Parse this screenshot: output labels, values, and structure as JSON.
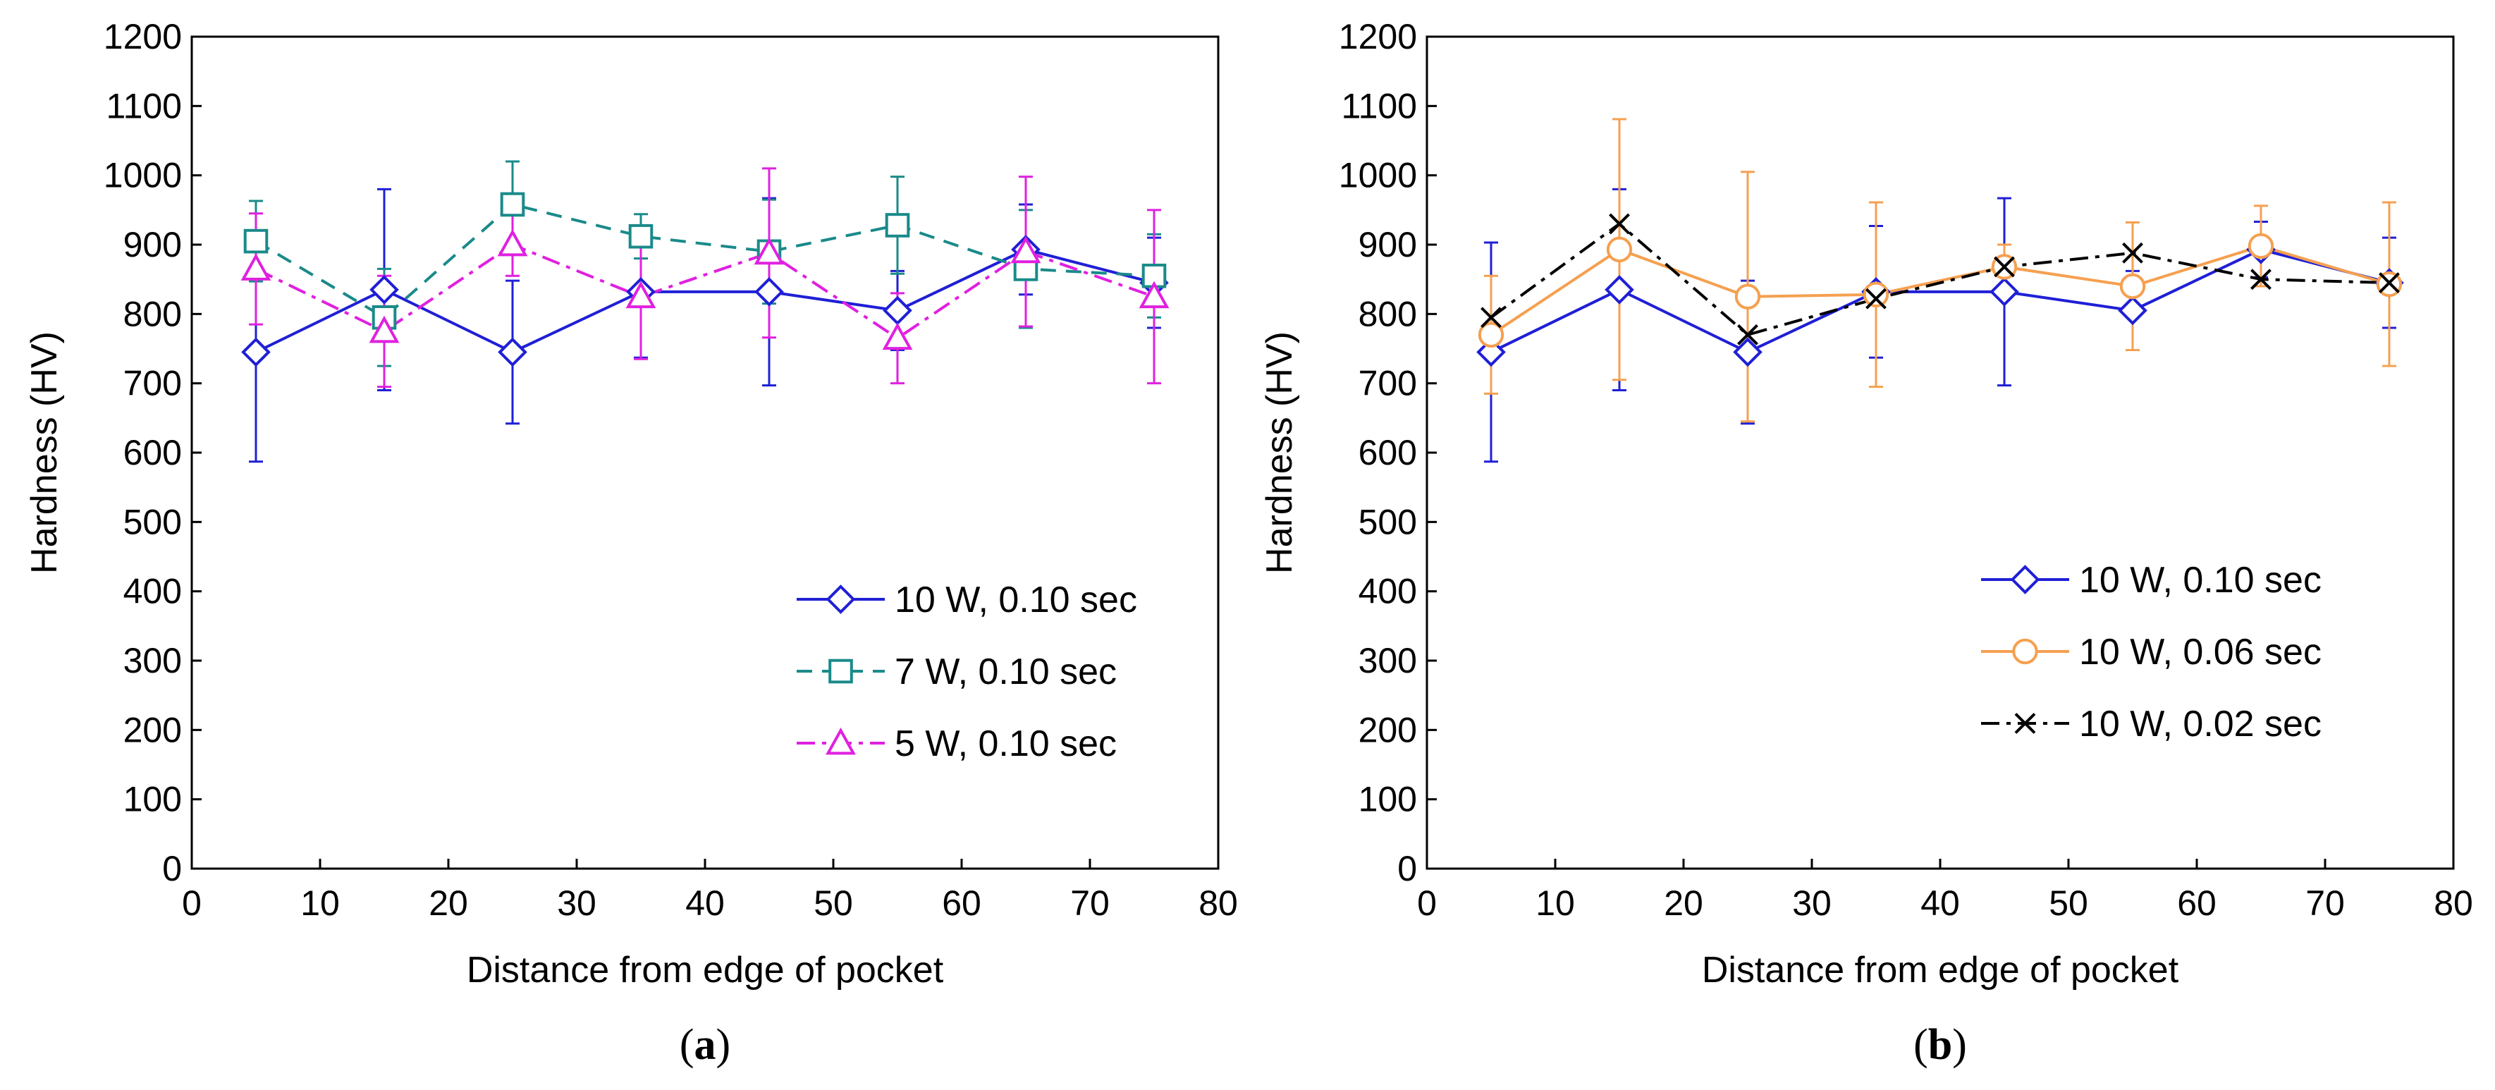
{
  "chart_data": [
    {
      "panel": "a",
      "type": "line",
      "caption_prefix": "(",
      "caption_letter": "a",
      "caption_suffix": ")",
      "xlabel": "Distance from edge of pocket",
      "ylabel": "Hardness (HV)",
      "xlim": [
        0,
        80
      ],
      "ylim": [
        0,
        1200
      ],
      "xticks": [
        0,
        10,
        20,
        30,
        40,
        50,
        60,
        70,
        80
      ],
      "yticks": [
        0,
        100,
        200,
        300,
        400,
        500,
        600,
        700,
        800,
        900,
        1000,
        1100,
        1200
      ],
      "legend_position": "bottom-right",
      "series": [
        {
          "name": "10 W, 0.10 sec",
          "color": "#1f1fd6",
          "line": "solid",
          "marker": "diamond",
          "x": [
            5,
            15,
            25,
            35,
            45,
            55,
            65,
            75
          ],
          "y": [
            745,
            835,
            745,
            832,
            832,
            805,
            893,
            845
          ],
          "err": [
            158,
            145,
            103,
            95,
            135,
            57,
            65,
            65
          ]
        },
        {
          "name": "7 W, 0.10 sec",
          "color": "#1a8a8a",
          "line": "dashed",
          "marker": "square",
          "x": [
            5,
            15,
            25,
            35,
            45,
            55,
            65,
            75
          ],
          "y": [
            905,
            795,
            958,
            912,
            890,
            928,
            865,
            855
          ],
          "err": [
            58,
            70,
            62,
            32,
            75,
            70,
            85,
            60
          ]
        },
        {
          "name": "5 W, 0.10 sec",
          "color": "#e020e0",
          "line": "dashdot",
          "marker": "triangle",
          "x": [
            5,
            15,
            25,
            35,
            45,
            55,
            65,
            75
          ],
          "y": [
            865,
            775,
            900,
            825,
            888,
            765,
            890,
            825
          ],
          "err": [
            80,
            80,
            45,
            90,
            122,
            65,
            108,
            125
          ]
        }
      ]
    },
    {
      "panel": "b",
      "type": "line",
      "caption_prefix": "(",
      "caption_letter": "b",
      "caption_suffix": ")",
      "xlabel": "Distance from edge of pocket",
      "ylabel": "Hardness (HV)",
      "xlim": [
        0,
        80
      ],
      "ylim": [
        0,
        1200
      ],
      "xticks": [
        0,
        10,
        20,
        30,
        40,
        50,
        60,
        70,
        80
      ],
      "yticks": [
        0,
        100,
        200,
        300,
        400,
        500,
        600,
        700,
        800,
        900,
        1000,
        1100,
        1200
      ],
      "legend_position": "bottom-right",
      "series": [
        {
          "name": "10 W, 0.10 sec",
          "color": "#1f1fd6",
          "line": "solid",
          "marker": "diamond",
          "x": [
            5,
            15,
            25,
            35,
            45,
            55,
            65,
            75
          ],
          "y": [
            745,
            835,
            745,
            832,
            832,
            805,
            893,
            845
          ],
          "err": [
            158,
            145,
            103,
            95,
            135,
            57,
            40,
            65
          ]
        },
        {
          "name": "10 W, 0.06 sec",
          "color": "#f5a050",
          "line": "solid",
          "marker": "circle",
          "x": [
            5,
            15,
            25,
            35,
            45,
            55,
            65,
            75
          ],
          "y": [
            770,
            893,
            825,
            828,
            868,
            840,
            898,
            843
          ],
          "err": [
            85,
            188,
            180,
            133,
            32,
            92,
            58,
            118
          ]
        },
        {
          "name": "10 W, 0.02 sec",
          "color": "#000000",
          "line": "dashdot",
          "marker": "x",
          "x": [
            5,
            15,
            25,
            35,
            45,
            55,
            65,
            75
          ],
          "y": [
            795,
            930,
            770,
            822,
            868,
            888,
            850,
            845
          ],
          "err": [
            0,
            0,
            0,
            0,
            0,
            0,
            0,
            0
          ]
        }
      ]
    }
  ]
}
